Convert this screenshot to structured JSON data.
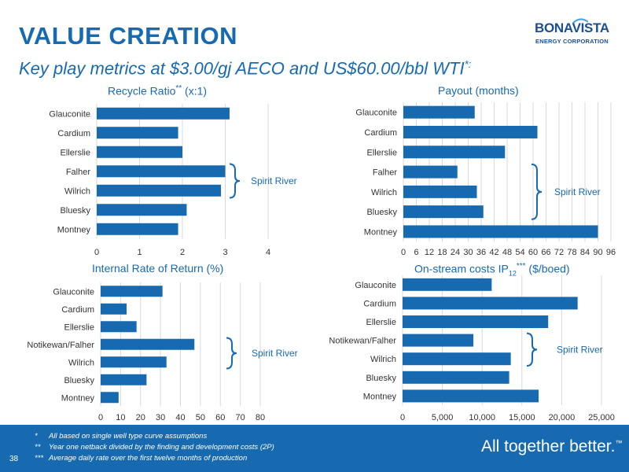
{
  "title": "VALUE CREATION",
  "subtitle": "Key play metrics at $3.00/gj AECO and US$60.00/bbl WTI",
  "subtitle_mark": "*:",
  "logo": {
    "name": "BONAVISTA",
    "sub": "ENERGY CORPORATION"
  },
  "colors": {
    "accent": "#1769b0",
    "bar": "#1769b0",
    "footer": "#1769b0"
  },
  "charts": {
    "recycle": {
      "title": "Recycle Ratio",
      "title_mark": "**",
      "title_unit": " (x:1)",
      "group_label": "Spirit River"
    },
    "payout": {
      "title": "Payout (months)",
      "group_label": "Spirit River"
    },
    "irr": {
      "title": "Internal Rate of Return (%)",
      "group_label": "Spirit River"
    },
    "onstream": {
      "title_pre": "On-stream costs IP",
      "title_sub": "12",
      "title_mark": "***",
      "title_post": " ($/boed)",
      "group_label": "Spirit River"
    }
  },
  "chart_data": [
    {
      "type": "bar",
      "orientation": "horizontal",
      "title": "Recycle Ratio** (x:1)",
      "categories": [
        "Glauconite",
        "Cardium",
        "Ellerslie",
        "Falher",
        "Wilrich",
        "Bluesky",
        "Montney"
      ],
      "values": [
        3.1,
        1.9,
        2.0,
        3.0,
        2.9,
        2.1,
        1.9
      ],
      "xlim": [
        0,
        4
      ],
      "ticks": [
        "0",
        "1",
        "2",
        "3",
        "4"
      ],
      "tick_values": [
        0,
        1,
        2,
        3,
        4
      ],
      "grid": true,
      "annotation": "Spirit River",
      "annotation_groups": [
        "Falher",
        "Wilrich"
      ]
    },
    {
      "type": "bar",
      "orientation": "horizontal",
      "title": "Payout (months)",
      "categories": [
        "Glauconite",
        "Cardium",
        "Ellerslie",
        "Falher",
        "Wilrich",
        "Bluesky",
        "Montney"
      ],
      "values": [
        33,
        62,
        47,
        25,
        34,
        37,
        90
      ],
      "xlim": [
        0,
        96
      ],
      "ticks": [
        "0",
        "6",
        "12",
        "18",
        "24",
        "30",
        "36",
        "42",
        "48",
        "54",
        "60",
        "66",
        "72",
        "78",
        "84",
        "90",
        "96"
      ],
      "tick_values": [
        0,
        6,
        12,
        18,
        24,
        30,
        36,
        42,
        48,
        54,
        60,
        66,
        72,
        78,
        84,
        90,
        96
      ],
      "grid": true,
      "annotation": "Spirit River",
      "annotation_groups": [
        "Falher",
        "Wilrich",
        "Bluesky"
      ]
    },
    {
      "type": "bar",
      "orientation": "horizontal",
      "title": "Internal Rate of Return (%)",
      "categories": [
        "Glauconite",
        "Cardium",
        "Ellerslie",
        "Notikewan/Falher",
        "Wilrich",
        "Bluesky",
        "Montney"
      ],
      "values": [
        31,
        13,
        18,
        47,
        33,
        23,
        9
      ],
      "xlim": [
        0,
        80
      ],
      "ticks": [
        "0",
        "10",
        "20",
        "30",
        "40",
        "50",
        "60",
        "70",
        "80"
      ],
      "tick_values": [
        0,
        10,
        20,
        30,
        40,
        50,
        60,
        70,
        80
      ],
      "grid": true,
      "annotation": "Spirit River",
      "annotation_groups": [
        "Notikewan/Falher",
        "Wilrich"
      ]
    },
    {
      "type": "bar",
      "orientation": "horizontal",
      "title": "On-stream costs IP12*** ($/boed)",
      "categories": [
        "Glauconite",
        "Cardium",
        "Ellerslie",
        "Notikewan/Falher",
        "Wilrich",
        "Bluesky",
        "Montney"
      ],
      "values": [
        11200,
        22000,
        18300,
        8900,
        13600,
        13400,
        17100
      ],
      "xlim": [
        0,
        25000
      ],
      "ticks": [
        "0",
        "5,000",
        "10,000",
        "15,000",
        "20,000",
        "25,000"
      ],
      "tick_values": [
        0,
        5000,
        10000,
        15000,
        20000,
        25000
      ],
      "grid": true,
      "annotation": "Spirit River",
      "annotation_groups": [
        "Notikewan/Falher",
        "Wilrich"
      ]
    }
  ],
  "footnotes": [
    {
      "mark": "*",
      "text": "All based on single well type curve assumptions"
    },
    {
      "mark": "**",
      "text": "Year one netback divided by the finding and development costs (2P)"
    },
    {
      "mark": "***",
      "text": "Average daily rate over the first twelve months of production"
    }
  ],
  "page_number": "38",
  "tagline": "All together better.",
  "tagline_mark": "™"
}
